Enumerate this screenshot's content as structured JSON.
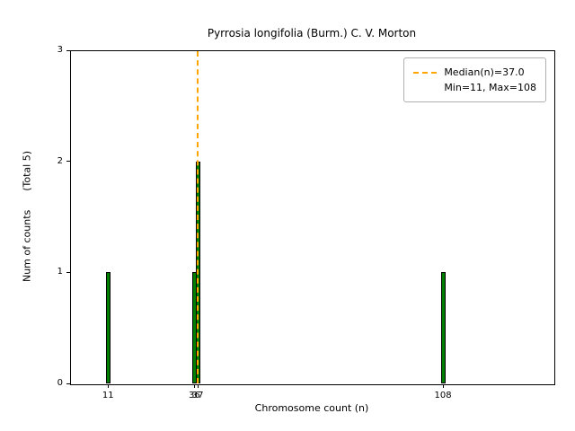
{
  "chart_data": {
    "type": "bar",
    "title": "Pyrrosia longifolia (Burm.) C. V. Morton",
    "xlabel": "Chromosome count (n)",
    "ylabel": "Num of counts      (Total 5)",
    "total_counts": 5,
    "bars": [
      {
        "x": 11,
        "count": 1
      },
      {
        "x": 36,
        "count": 1
      },
      {
        "x": 37,
        "count": 2
      },
      {
        "x": 108,
        "count": 1
      }
    ],
    "median": 37.0,
    "min": 11,
    "max": 108,
    "xlim": [
      0,
      140
    ],
    "ylim": [
      0,
      3
    ],
    "yticks": [
      0,
      1,
      2,
      3
    ],
    "xticks": [
      11,
      36,
      37,
      108
    ],
    "bar_color": "#008000",
    "bar_edge_color": "#000000",
    "median_line_color": "#ffa500",
    "legend": {
      "position": "upper right",
      "entries": [
        "Median(n)=37.0",
        "Min=11, Max=108"
      ]
    },
    "grid": false
  }
}
